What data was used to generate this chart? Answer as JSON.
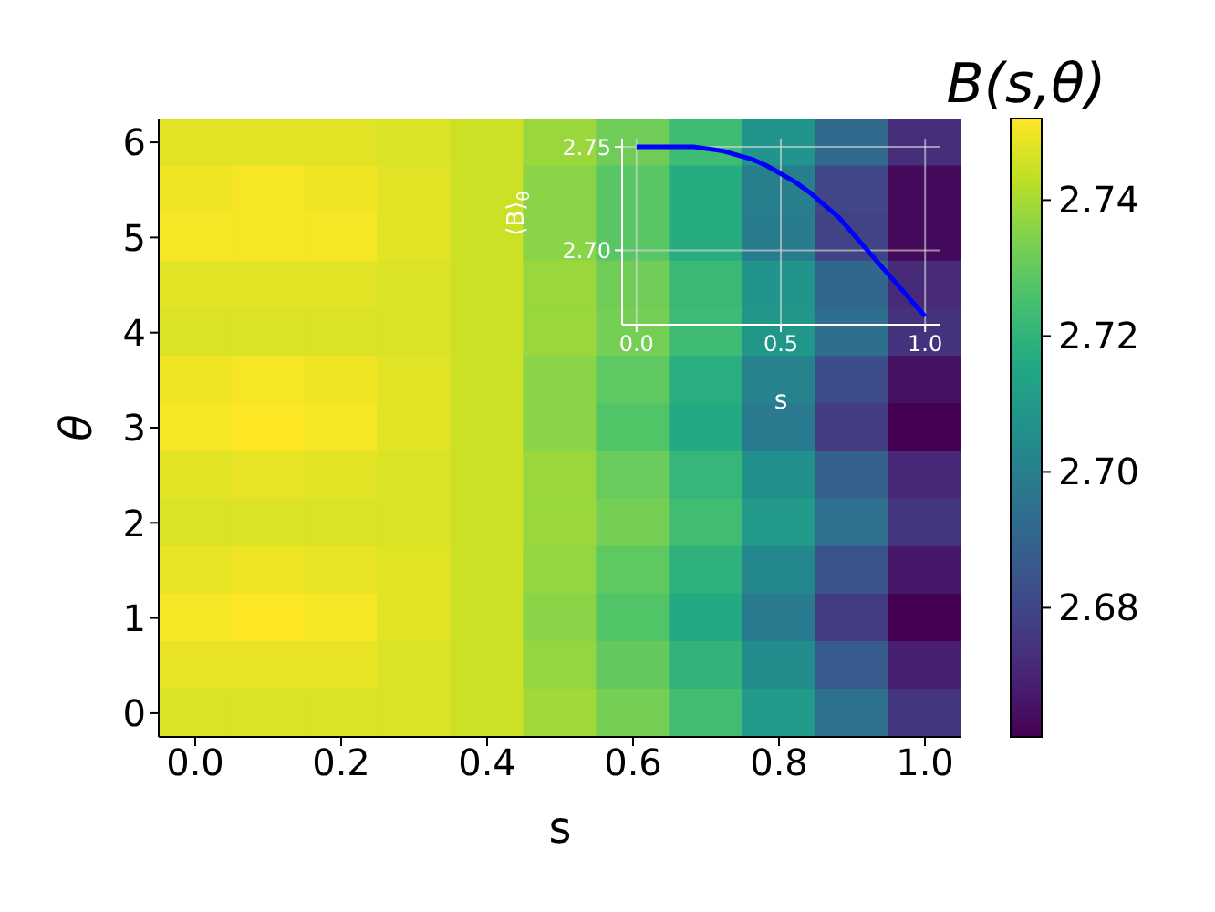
{
  "chart_data": [
    {
      "type": "heatmap",
      "clabel": "B(s,θ)",
      "xlabel": "s",
      "ylabel": "θ",
      "categories": [
        "0.0",
        null,
        "0.2",
        null,
        "0.4",
        null,
        "0.6",
        null,
        "0.8",
        null,
        "1.0"
      ],
      "y_categories": [
        "6",
        null,
        "5",
        null,
        "4",
        null,
        "3",
        null,
        "2",
        null,
        "1",
        null,
        "0"
      ],
      "cells": [
        [
          2.748,
          2.748,
          2.748,
          2.747,
          2.745,
          2.738,
          2.732,
          2.723,
          2.708,
          2.692,
          2.673
        ],
        [
          2.75,
          2.751,
          2.75,
          2.748,
          2.745,
          2.736,
          2.728,
          2.717,
          2.7,
          2.68,
          2.663
        ],
        [
          2.751,
          2.751,
          2.751,
          2.748,
          2.745,
          2.736,
          2.728,
          2.717,
          2.699,
          2.679,
          2.663
        ],
        [
          2.748,
          2.748,
          2.748,
          2.747,
          2.745,
          2.738,
          2.732,
          2.722,
          2.708,
          2.691,
          2.672
        ],
        [
          2.747,
          2.747,
          2.747,
          2.747,
          2.745,
          2.738,
          2.733,
          2.723,
          2.709,
          2.694,
          2.674
        ],
        [
          2.75,
          2.751,
          2.75,
          2.748,
          2.745,
          2.736,
          2.729,
          2.718,
          2.701,
          2.682,
          2.665
        ],
        [
          2.751,
          2.752,
          2.751,
          2.748,
          2.745,
          2.736,
          2.727,
          2.716,
          2.698,
          2.677,
          2.661
        ],
        [
          2.748,
          2.749,
          2.748,
          2.747,
          2.745,
          2.738,
          2.731,
          2.721,
          2.706,
          2.689,
          2.671
        ],
        [
          2.747,
          2.747,
          2.747,
          2.747,
          2.745,
          2.738,
          2.733,
          2.724,
          2.71,
          2.695,
          2.675
        ],
        [
          2.749,
          2.75,
          2.749,
          2.748,
          2.745,
          2.737,
          2.729,
          2.719,
          2.703,
          2.684,
          2.667
        ],
        [
          2.751,
          2.752,
          2.751,
          2.748,
          2.745,
          2.736,
          2.727,
          2.716,
          2.698,
          2.677,
          2.661
        ],
        [
          2.749,
          2.749,
          2.749,
          2.747,
          2.745,
          2.737,
          2.73,
          2.72,
          2.705,
          2.687,
          2.669
        ],
        [
          2.747,
          2.747,
          2.747,
          2.747,
          2.745,
          2.739,
          2.733,
          2.724,
          2.71,
          2.695,
          2.675
        ]
      ],
      "clim": [
        2.661,
        2.752
      ],
      "cticks": [
        {
          "value": 2.68,
          "label": "2.68"
        },
        {
          "value": 2.7,
          "label": "2.70"
        },
        {
          "value": 2.72,
          "label": "2.72"
        },
        {
          "value": 2.74,
          "label": "2.74"
        }
      ]
    },
    {
      "type": "line",
      "xlabel": "s",
      "ylabel": "⟨B⟩$_{θ}$",
      "x": [
        0,
        0.05,
        0.1,
        0.15,
        0.2,
        0.25,
        0.3,
        0.35,
        0.4,
        0.45,
        0.5,
        0.55,
        0.6,
        0.65,
        0.7,
        0.75,
        0.8,
        0.85,
        0.9,
        0.95,
        1.0
      ],
      "series": [
        {
          "color": "#0000ff",
          "values": [
            2.75,
            2.75,
            2.75,
            2.75,
            2.75,
            2.749,
            2.748,
            2.746,
            2.744,
            2.741,
            2.737,
            2.733,
            2.728,
            2.722,
            2.716,
            2.708,
            2.7,
            2.692,
            2.684,
            2.676,
            2.668
          ]
        }
      ],
      "xlim": [
        -0.05,
        1.05
      ],
      "xticks": [
        {
          "value": 0,
          "label": "0.0"
        },
        {
          "value": 0.5,
          "label": "0.5"
        },
        {
          "value": 1,
          "label": "1.0"
        }
      ],
      "ylim": [
        2.664,
        2.754
      ],
      "yticks": [
        {
          "value": 2.7,
          "label": "2.70"
        },
        {
          "value": 2.75,
          "label": "2.75"
        }
      ],
      "grid": true
    }
  ]
}
